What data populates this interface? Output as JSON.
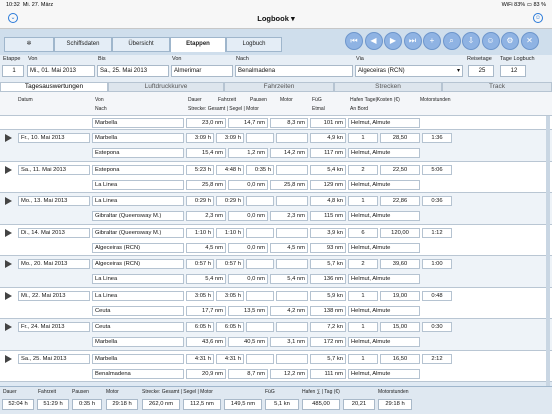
{
  "status": {
    "time": "10:32",
    "date": "Mi. 27. März",
    "battery": "83 %",
    "signal": "WiFi 83%"
  },
  "nav": {
    "title": "Logbook",
    "title_caret": "▾",
    "back_glyph": "⌄",
    "right_glyph": "☺"
  },
  "tabs": [
    "Schiffsdaten",
    "Übersicht",
    "Etappen",
    "Logbuch"
  ],
  "active_tab": "Etappen",
  "toolbar_icons": [
    "skip-start-icon",
    "previous-icon",
    "next-icon",
    "skip-end-icon",
    "add-icon",
    "search-icon",
    "download-icon",
    "user-icon",
    "gear-icon",
    "hide-icon"
  ],
  "toolbar_glyphs": [
    "⏮",
    "◀",
    "▶",
    "⏭",
    "+",
    "⌕",
    "⇩",
    "☺",
    "⚙",
    "✕"
  ],
  "form": {
    "labels": {
      "etappe": "Etappe",
      "von": "Von",
      "bis": "Bis",
      "von_ort": "Von",
      "nach": "Nach",
      "via": "Via",
      "reisetage": "Reisetage",
      "tage_logbuch": "Tage Logbuch"
    },
    "values": {
      "etappe": "1",
      "von": "Mi., 01. Mai 2013",
      "bis": "Sa., 25. Mai 2013",
      "von_ort": "Almerimar",
      "nach": "Benalmadena",
      "via": "Algeceiras (RCN)",
      "reisetage": "25",
      "tage_logbuch": "12"
    }
  },
  "subtabs": [
    "Tagesauswertungen",
    "Luftdruckkurve",
    "Fahrzeiten",
    "Strecken",
    "Track"
  ],
  "active_subtab": "Tagesauswertungen",
  "columns": {
    "datum": "Datum",
    "von": "Von",
    "nach": "Nach",
    "dauer": "Dauer",
    "fahrzeit": "Fahrzeit",
    "pausen": "Pausen",
    "motor": "Motor",
    "fueg": "FüG",
    "etmal": "Etmal",
    "hafen": "Hafen Tage|Kosten (€)",
    "anbord": "An Bord",
    "motorstunden": "Motorstunden",
    "strecke": "Strecke: Gesamt | Segel | Motor"
  },
  "first_row": {
    "place": "Marbella",
    "gesamt": "23,0 nm",
    "segel": "14,7 nm",
    "motor": "8,3 nm",
    "etmal": "101 nm",
    "anbord": "Helmut, Almute"
  },
  "days": [
    {
      "date": "Fr., 10. Mai 2013",
      "von": "Marbella",
      "dauer": "3:09 h",
      "fahrzeit": "3:09 h",
      "pausen": "",
      "motor": "",
      "fueg": "4,9 kn",
      "tage": "1",
      "kosten": "28,50",
      "motorstunden": "1:36",
      "nach": "Estepona",
      "gesamt": "15,4 nm",
      "segel": "1,2 nm",
      "motor_nm": "14,2 nm",
      "etmal": "117 nm",
      "anbord": "Helmut, Almute"
    },
    {
      "date": "Sa., 11. Mai 2013",
      "von": "Estepona",
      "dauer": "5:23 h",
      "fahrzeit": "4:48 h",
      "pausen": "0:35 h",
      "motor": "",
      "fueg": "5,4 kn",
      "tage": "2",
      "kosten": "22,50",
      "motorstunden": "5:06",
      "nach": "La Linea",
      "gesamt": "25,8 nm",
      "segel": "0,0 nm",
      "motor_nm": "25,8 nm",
      "etmal": "129 nm",
      "anbord": "Helmut, Almute"
    },
    {
      "date": "Mo., 13. Mai 2013",
      "von": "La Linea",
      "dauer": "0:29 h",
      "fahrzeit": "0:29 h",
      "pausen": "",
      "motor": "",
      "fueg": "4,8 kn",
      "tage": "1",
      "kosten": "22,86",
      "motorstunden": "0:36",
      "nach": "Gibraltar (Queensway M.)",
      "gesamt": "2,3 nm",
      "segel": "0,0 nm",
      "motor_nm": "2,3 nm",
      "etmal": "115 nm",
      "anbord": "Helmut, Almute"
    },
    {
      "date": "Di., 14. Mai 2013",
      "von": "Gibraltar (Queensway M.)",
      "dauer": "1:10 h",
      "fahrzeit": "1:10 h",
      "pausen": "",
      "motor": "",
      "fueg": "3,9 kn",
      "tage": "6",
      "kosten": "120,00",
      "motorstunden": "1:12",
      "nach": "Algeceiras (RCN)",
      "gesamt": "4,5 nm",
      "segel": "0,0 nm",
      "motor_nm": "4,5 nm",
      "etmal": "93 nm",
      "anbord": "Helmut, Almute"
    },
    {
      "date": "Mo., 20. Mai 2013",
      "von": "Algeceiras (RCN)",
      "dauer": "0:57 h",
      "fahrzeit": "0:57 h",
      "pausen": "",
      "motor": "",
      "fueg": "5,7 kn",
      "tage": "2",
      "kosten": "39,60",
      "motorstunden": "1:00",
      "nach": "La Linea",
      "gesamt": "5,4 nm",
      "segel": "0,0 nm",
      "motor_nm": "5,4 nm",
      "etmal": "136 nm",
      "anbord": "Helmut, Almute"
    },
    {
      "date": "Mi., 22. Mai 2013",
      "von": "La Linea",
      "dauer": "3:05 h",
      "fahrzeit": "3:05 h",
      "pausen": "",
      "motor": "",
      "fueg": "5,9 kn",
      "tage": "1",
      "kosten": "19,00",
      "motorstunden": "0:48",
      "nach": "Ceuta",
      "gesamt": "17,7 nm",
      "segel": "13,5 nm",
      "motor_nm": "4,2 nm",
      "etmal": "138 nm",
      "anbord": "Helmut, Almute"
    },
    {
      "date": "Fr., 24. Mai 2013",
      "von": "Ceuta",
      "dauer": "6:05 h",
      "fahrzeit": "6:05 h",
      "pausen": "",
      "motor": "",
      "fueg": "7,2 kn",
      "tage": "1",
      "kosten": "15,00",
      "motorstunden": "0:30",
      "nach": "Marbella",
      "gesamt": "43,6 nm",
      "segel": "40,5 nm",
      "motor_nm": "3,1 nm",
      "etmal": "172 nm",
      "anbord": "Helmut, Almute"
    },
    {
      "date": "Sa., 25. Mai 2013",
      "von": "Marbella",
      "dauer": "4:31 h",
      "fahrzeit": "4:31 h",
      "pausen": "",
      "motor": "",
      "fueg": "5,7 kn",
      "tage": "1",
      "kosten": "16,50",
      "motorstunden": "2:12",
      "nach": "Benalmadena",
      "gesamt": "20,9 nm",
      "segel": "8,7 nm",
      "motor_nm": "12,2 nm",
      "etmal": "111 nm",
      "anbord": "Helmut, Almute"
    }
  ],
  "footer": {
    "labels": {
      "dauer": "Dauer",
      "fahrzeit": "Fahrzeit",
      "pausen": "Pausen",
      "motor": "Motor",
      "strecke": "Strecke: Gesamt | Segel | Motor",
      "fueg": "FüG",
      "hafen": "Hafen ∑ | Tag (€)",
      "motorstunden": "Motorstunden"
    },
    "values": {
      "dauer": "52:04 h",
      "fahrzeit": "51:29 h",
      "pausen": "0:35 h",
      "motor": "29:18 h",
      "gesamt": "262,0 nm",
      "segel": "112,5 nm",
      "motor_nm": "149,5 nm",
      "fueg": "5,1 kn",
      "hafen_sum": "485,00",
      "hafen_tag": "20,21",
      "motorstunden": "29:18 h"
    }
  }
}
